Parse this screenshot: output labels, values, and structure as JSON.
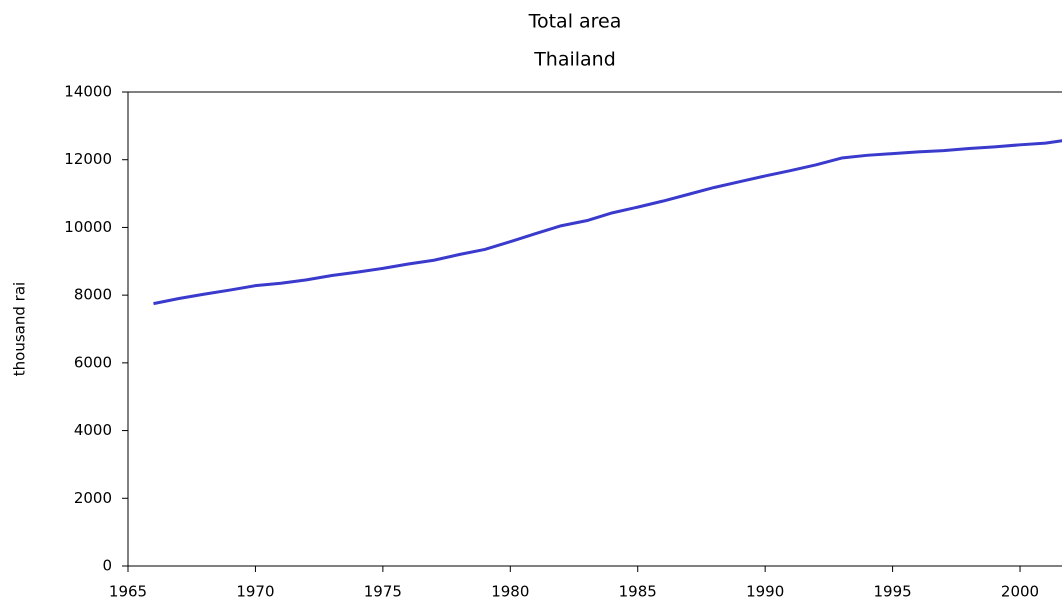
{
  "chart_data": {
    "type": "line",
    "title": "Total area",
    "subtitle": "Thailand",
    "ylabel": "thousand rai",
    "x": [
      1966,
      1967,
      1968,
      1969,
      1970,
      1971,
      1972,
      1973,
      1974,
      1975,
      1976,
      1977,
      1978,
      1979,
      1980,
      1981,
      1982,
      1983,
      1984,
      1985,
      1986,
      1987,
      1988,
      1989,
      1990,
      1991,
      1992,
      1993,
      1994,
      1995,
      1996,
      1997,
      1998,
      1999,
      2000,
      2001,
      2002
    ],
    "series": [
      {
        "name": "Total area",
        "color": "#3a3acc",
        "values": [
          7750,
          7900,
          8030,
          8150,
          8280,
          8350,
          8450,
          8580,
          8680,
          8790,
          8920,
          9030,
          9200,
          9350,
          9580,
          9820,
          10050,
          10200,
          10430,
          10600,
          10780,
          10980,
          11180,
          11350,
          11520,
          11680,
          11850,
          12050,
          12130,
          12180,
          12230,
          12270,
          12330,
          12380,
          12440,
          12490,
          12600
        ]
      }
    ],
    "xlim": [
      1965,
      2002
    ],
    "xticks": [
      1965,
      1970,
      1975,
      1980,
      1985,
      1990,
      1995,
      2000
    ],
    "ylim": [
      0,
      14000
    ],
    "yticks": [
      0,
      2000,
      4000,
      6000,
      8000,
      10000,
      12000,
      14000
    ]
  }
}
